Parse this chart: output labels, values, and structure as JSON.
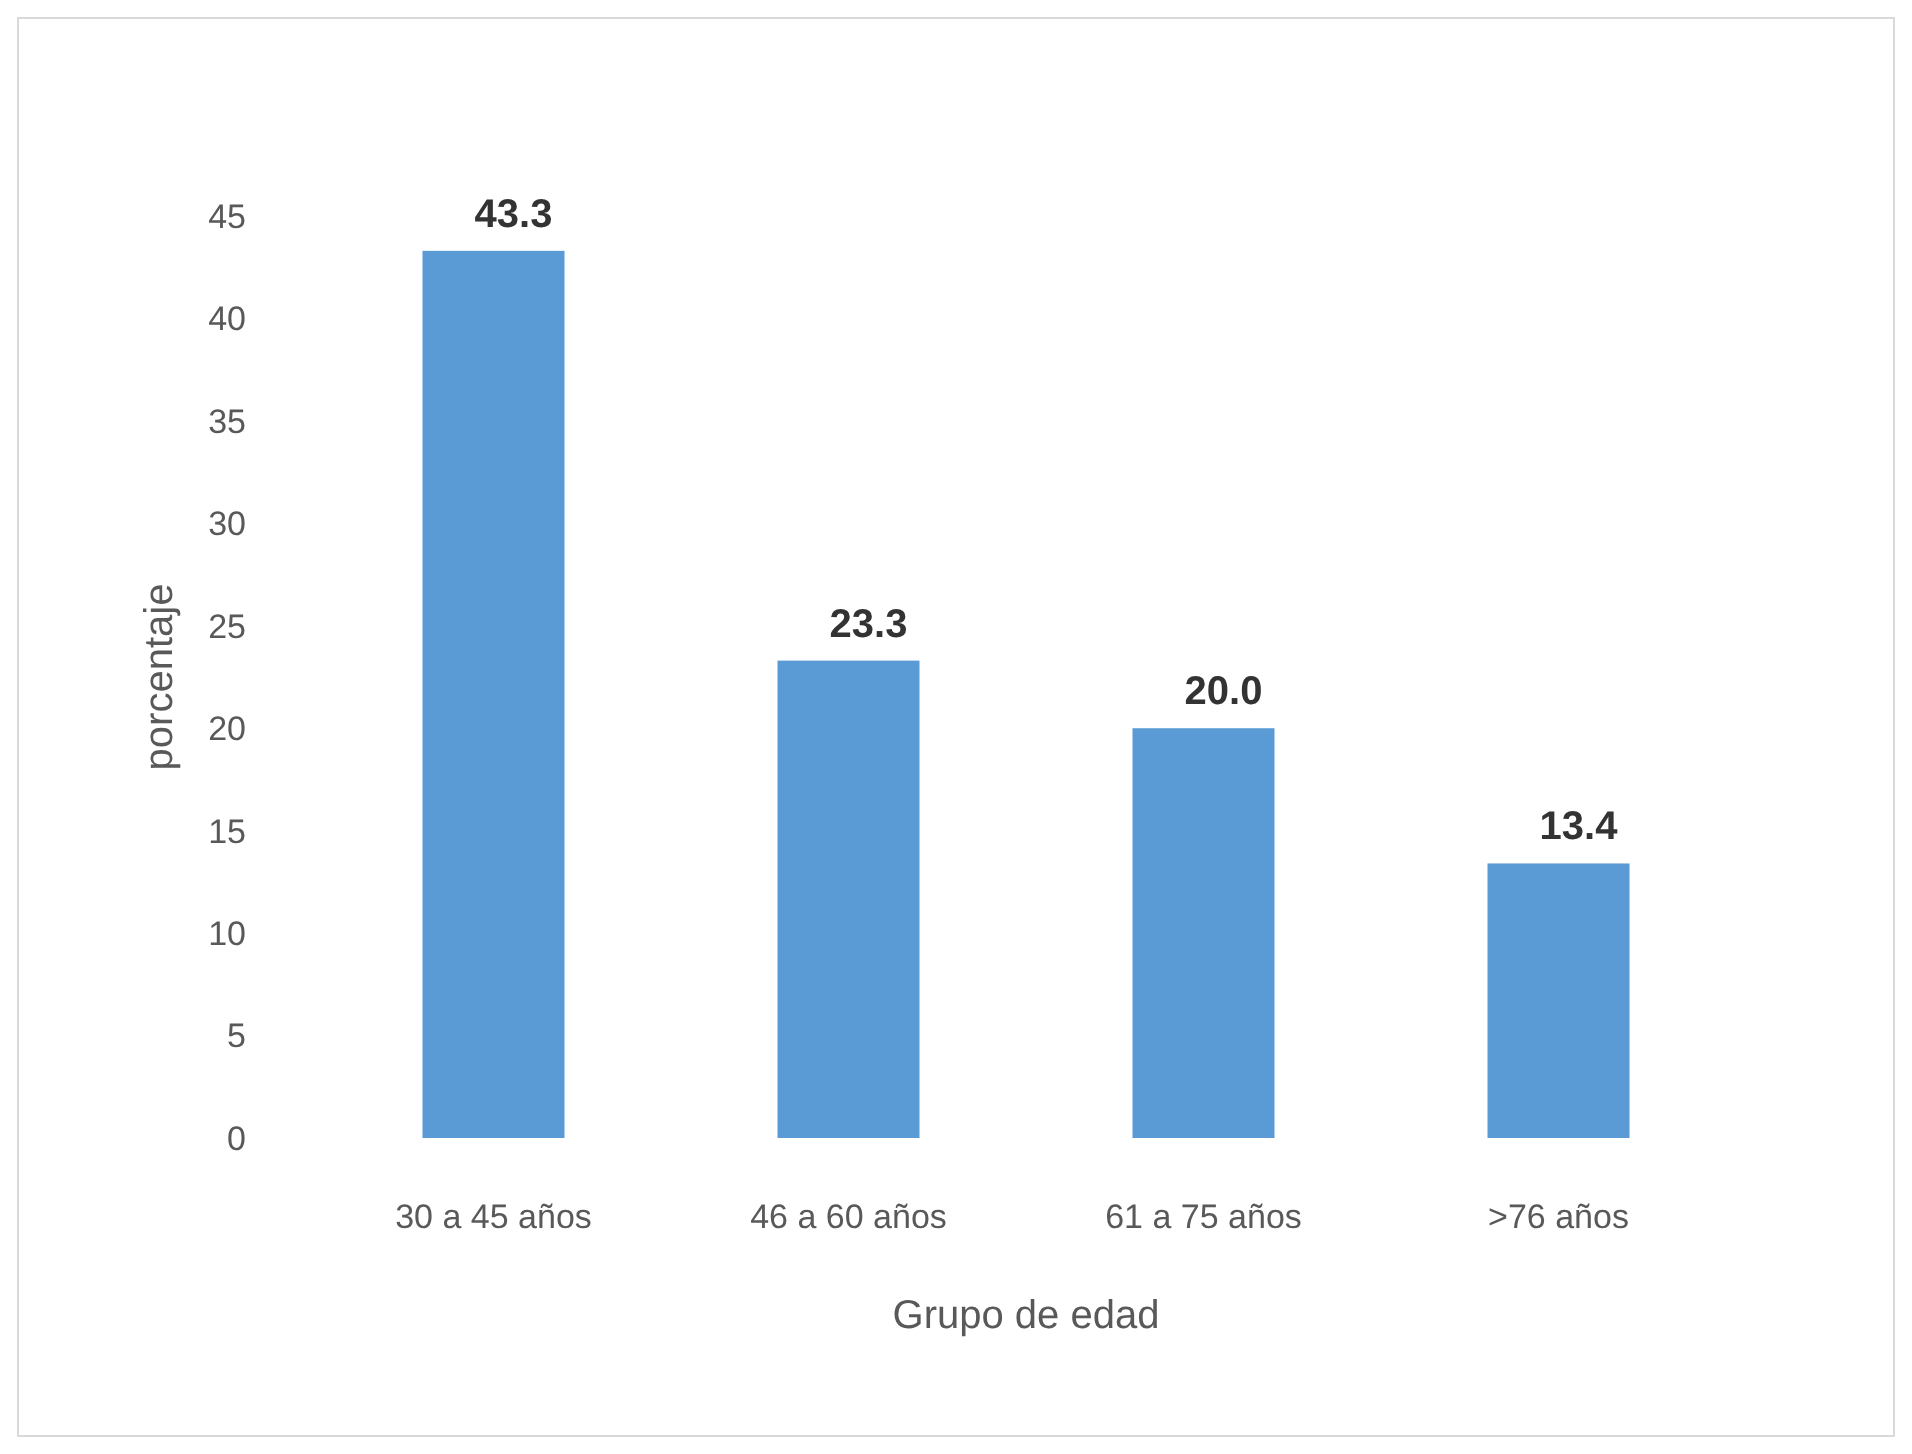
{
  "chart_data": {
    "type": "bar",
    "xlabel": "Grupo de edad",
    "ylabel": "porcentaje",
    "categories": [
      "30 a 45 años",
      "46 a 60 años",
      "61 a 75 años",
      ">76 años"
    ],
    "values": [
      43.3,
      23.3,
      20.0,
      13.4
    ],
    "value_labels": [
      "43.3",
      "23.3",
      "20.0",
      "13.4"
    ],
    "color": "#5b9bd5",
    "ylim": [
      0,
      45
    ],
    "yticks": [
      0,
      5,
      10,
      15,
      20,
      25,
      30,
      35,
      40,
      45
    ],
    "grid": false
  }
}
